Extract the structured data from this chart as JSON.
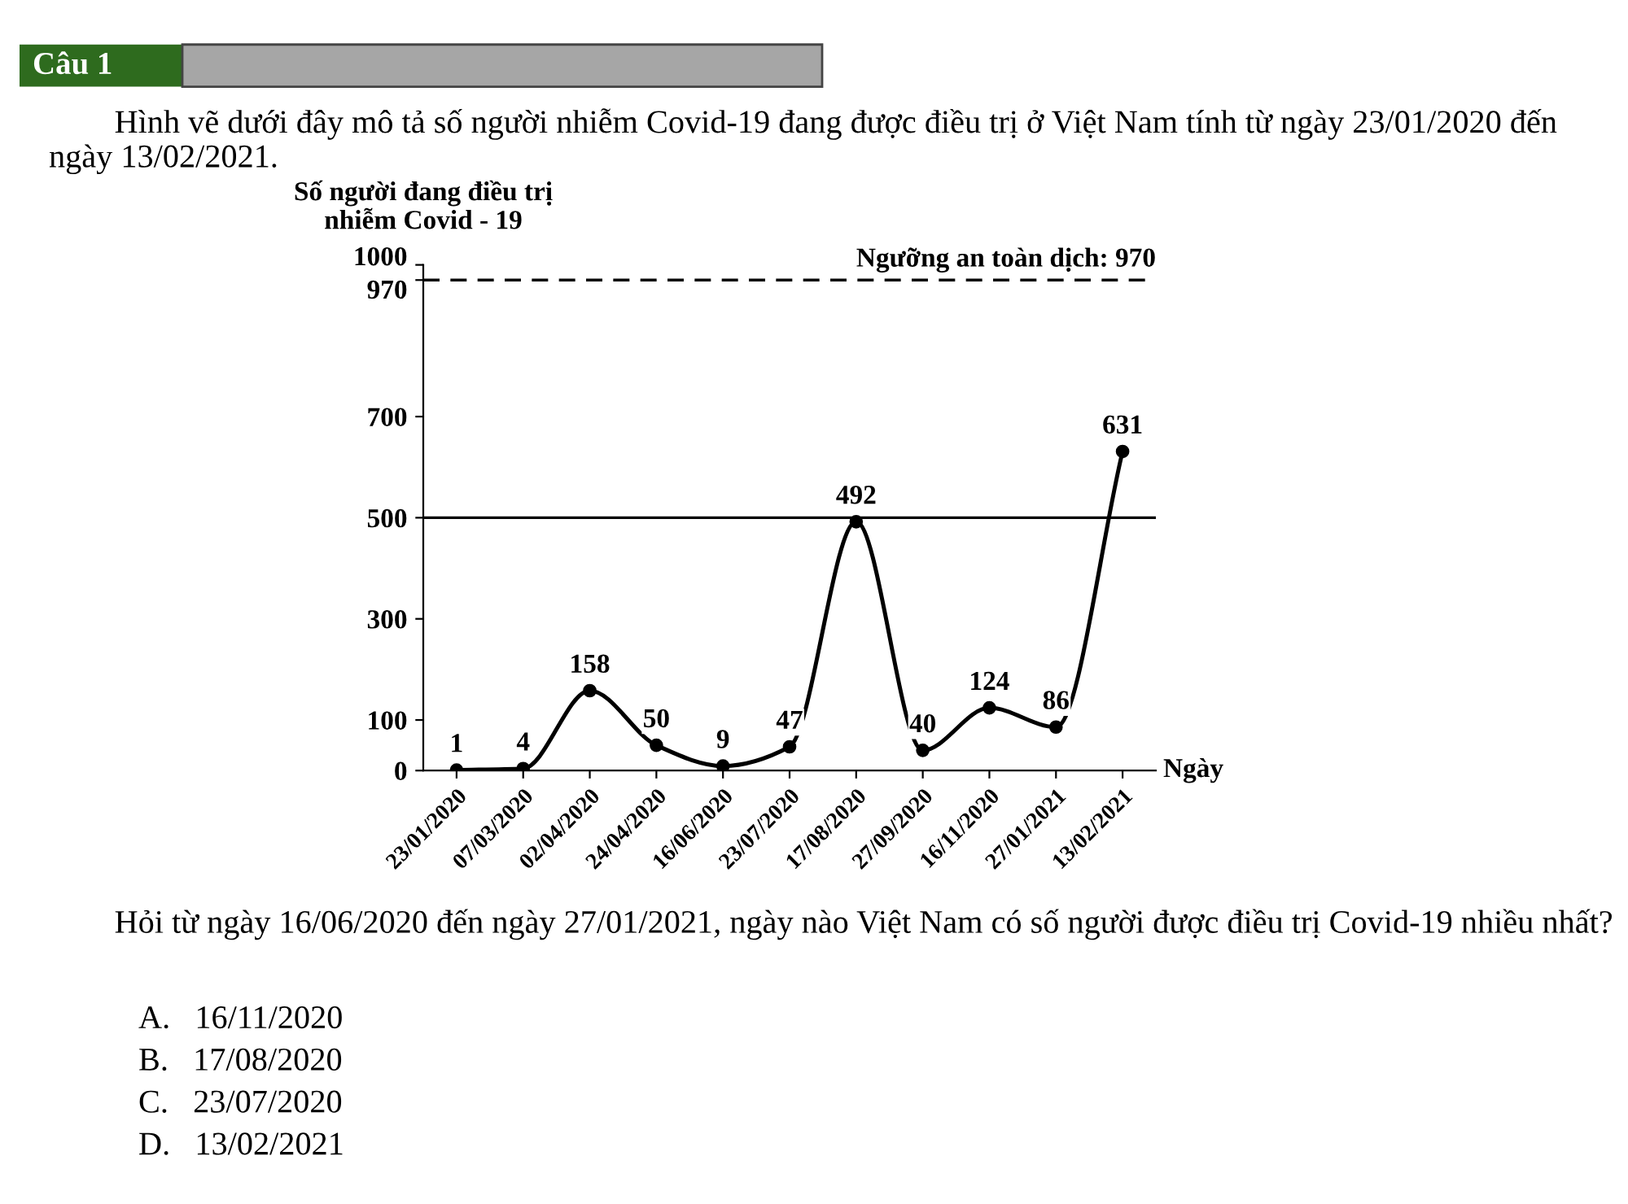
{
  "chart_data": {
    "type": "line",
    "title": "Câu 1",
    "subtitle": "Hình vẽ dưới đây mô tả số người nhiễm Covid-19 đang được điều trị ở Việt Nam tính từ ngày 23/01/2020 đến ngày 13/02/2021.",
    "xlabel": "Ngày",
    "ylabel": "Số người đang điều trị\nnhiễm Covid - 19",
    "categories": [
      "23/01/2020",
      "07/03/2020",
      "02/04/2020",
      "24/04/2020",
      "16/06/2020",
      "23/07/2020",
      "17/08/2020",
      "27/09/2020",
      "16/11/2020",
      "27/01/2021",
      "13/02/2021"
    ],
    "series": [
      {
        "color": "#000000",
        "values": [
          1,
          4,
          158,
          50,
          9,
          47,
          492,
          40,
          124,
          86,
          631
        ]
      }
    ],
    "ylim": [
      0,
      1000
    ],
    "yticks": [
      0,
      100,
      300,
      500,
      700,
      970,
      1000
    ],
    "data_labels": true,
    "marker": "circle",
    "line_style": "solid",
    "grid": false,
    "legend": false,
    "ref_lines": [
      {
        "axis": "y",
        "value": 970,
        "label": "Ngưỡng an toàn dịch: 970",
        "line_style": "dashed",
        "color": "#000000"
      },
      {
        "axis": "y",
        "value": 500,
        "line_style": "solid",
        "color": "#000000"
      }
    ],
    "annotations": [
      "Hỏi từ ngày 16/06/2020 đến ngày 27/01/2021, ngày nào Việt Nam có số người được điều trị Covid-19 nhiều nhất?",
      "A.   16/11/2020",
      "B.   17/08/2020",
      "C.   23/07/2020",
      "D.   13/02/2021"
    ]
  }
}
